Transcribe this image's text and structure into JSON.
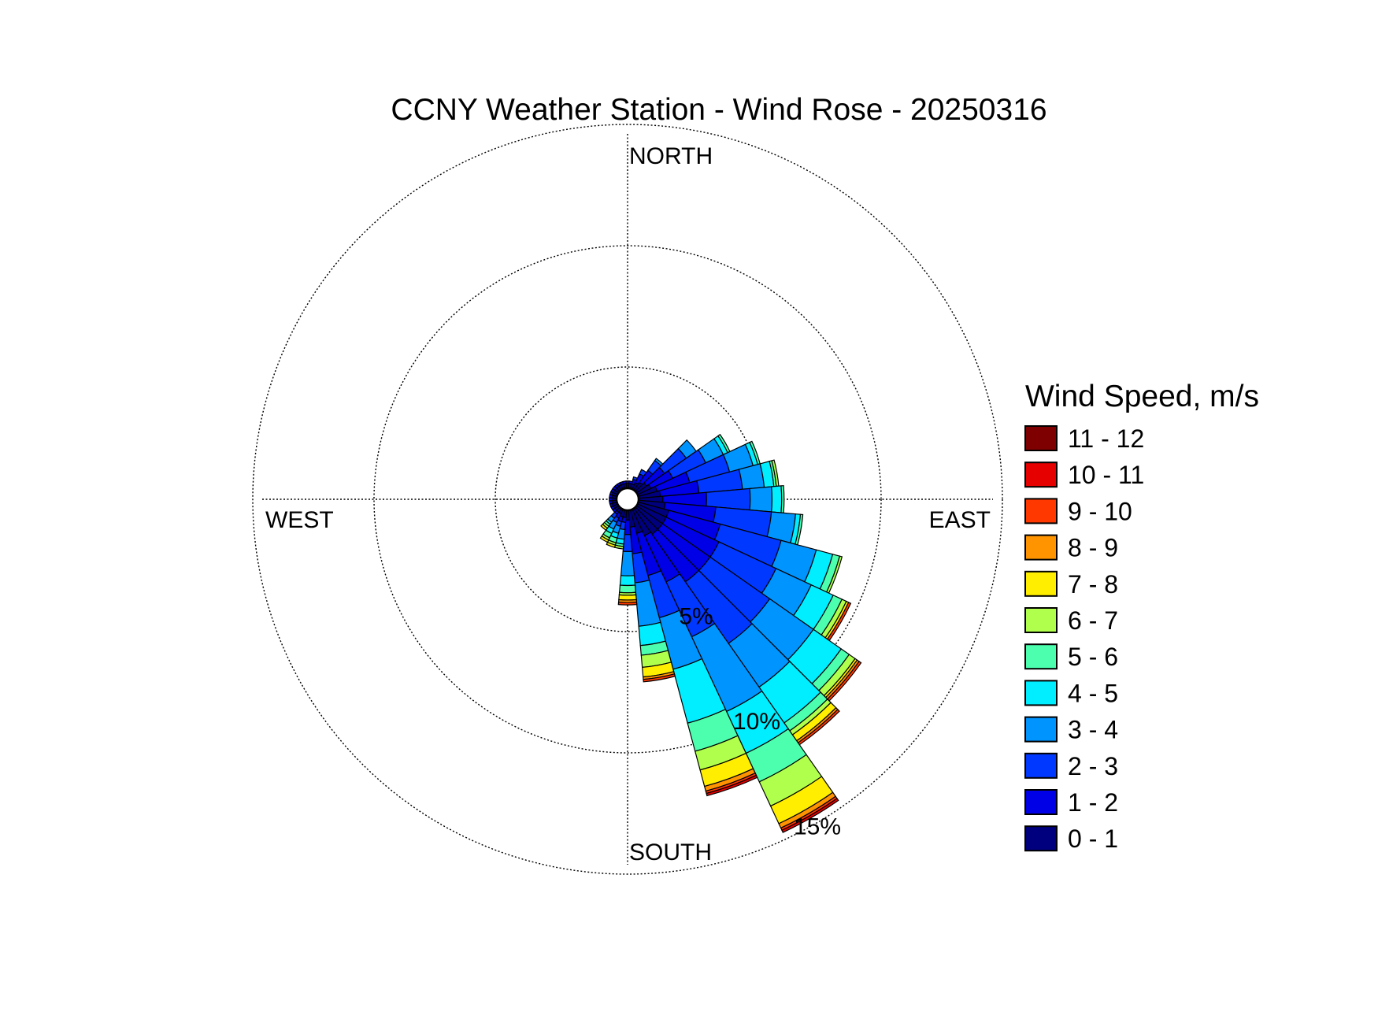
{
  "chart_data": {
    "type": "wind-rose",
    "title": "CCNY Weather Station - Wind Rose - 20250316",
    "directions": {
      "north": "NORTH",
      "east": "EAST",
      "south": "SOUTH",
      "west": "WEST"
    },
    "radial_unit": "percent",
    "radial_max": 15,
    "ring_labels": [
      {
        "value": 5,
        "text": "5%"
      },
      {
        "value": 10,
        "text": "10%"
      },
      {
        "value": 15,
        "text": "15%"
      }
    ],
    "grid": true,
    "legend": {
      "title": "Wind Speed, m/s",
      "position": "right",
      "bins": [
        {
          "label": "0 - 1",
          "color": "#00007f"
        },
        {
          "label": "1 - 2",
          "color": "#0000e6"
        },
        {
          "label": "2 - 3",
          "color": "#0038ff"
        },
        {
          "label": "3 - 4",
          "color": "#0094ff"
        },
        {
          "label": "4 - 5",
          "color": "#00eeff"
        },
        {
          "label": "5 - 6",
          "color": "#4cffae"
        },
        {
          "label": "6 - 7",
          "color": "#b0ff4c"
        },
        {
          "label": "7 - 8",
          "color": "#ffee00"
        },
        {
          "label": "8 - 9",
          "color": "#ff9400"
        },
        {
          "label": "9 - 10",
          "color": "#ff3800"
        },
        {
          "label": "10 - 11",
          "color": "#e60000"
        },
        {
          "label": "11 - 12",
          "color": "#7f0000"
        }
      ]
    },
    "sector_width_deg": 10,
    "series_note": "cumulative percent per speed bin, bins ordered 0-1 ... 11-12",
    "sectors": [
      {
        "direction": 0,
        "cum": [
          0.2,
          0.3,
          0.3,
          0.3,
          0.3,
          0.3,
          0.3,
          0.3,
          0.3,
          0.3,
          0.3,
          0.3
        ]
      },
      {
        "direction": 10,
        "cum": [
          0.2,
          0.3,
          0.3,
          0.3,
          0.3,
          0.3,
          0.3,
          0.3,
          0.3,
          0.3,
          0.3,
          0.3
        ]
      },
      {
        "direction": 20,
        "cum": [
          0.2,
          0.4,
          0.5,
          0.5,
          0.5,
          0.5,
          0.5,
          0.5,
          0.5,
          0.5,
          0.5,
          0.5
        ]
      },
      {
        "direction": 30,
        "cum": [
          0.3,
          0.7,
          0.9,
          0.9,
          0.9,
          0.9,
          0.9,
          0.9,
          0.9,
          0.9,
          0.9,
          0.9
        ]
      },
      {
        "direction": 40,
        "cum": [
          0.4,
          1.0,
          1.5,
          1.6,
          1.6,
          1.6,
          1.6,
          1.6,
          1.6,
          1.6,
          1.6,
          1.6
        ]
      },
      {
        "direction": 50,
        "cum": [
          0.5,
          1.4,
          2.5,
          3.0,
          3.0,
          3.0,
          3.0,
          3.0,
          3.0,
          3.0,
          3.0,
          3.0
        ]
      },
      {
        "direction": 60,
        "cum": [
          0.6,
          1.6,
          3.1,
          3.9,
          4.1,
          4.2,
          4.2,
          4.2,
          4.2,
          4.2,
          4.2,
          4.2
        ]
      },
      {
        "direction": 70,
        "cum": [
          0.8,
          2.2,
          3.9,
          4.9,
          5.1,
          5.2,
          5.2,
          5.2,
          5.2,
          5.2,
          5.2,
          5.2
        ]
      },
      {
        "direction": 80,
        "cum": [
          0.9,
          2.5,
          4.3,
          5.2,
          5.6,
          5.7,
          5.8,
          5.8,
          5.8,
          5.8,
          5.8,
          5.8
        ]
      },
      {
        "direction": 90,
        "cum": [
          1.0,
          2.8,
          4.6,
          5.5,
          5.9,
          6.0,
          6.0,
          6.0,
          6.0,
          6.0,
          6.0,
          6.0
        ]
      },
      {
        "direction": 100,
        "cum": [
          1.1,
          3.2,
          5.5,
          6.5,
          6.7,
          6.8,
          6.8,
          6.8,
          6.8,
          6.8,
          6.8,
          6.8
        ]
      },
      {
        "direction": 110,
        "cum": [
          1.3,
          3.5,
          6.1,
          7.6,
          8.3,
          8.6,
          8.7,
          8.7,
          8.7,
          8.7,
          8.7,
          8.7
        ]
      },
      {
        "direction": 120,
        "cum": [
          1.3,
          3.7,
          6.3,
          7.9,
          8.9,
          9.3,
          9.5,
          9.6,
          9.6,
          9.7,
          9.7,
          9.7
        ]
      },
      {
        "direction": 130,
        "cum": [
          1.3,
          3.7,
          6.7,
          8.9,
          10.3,
          10.7,
          11.0,
          11.1,
          11.2,
          11.3,
          11.3,
          11.3
        ]
      },
      {
        "direction": 140,
        "cum": [
          1.3,
          3.7,
          6.8,
          9.0,
          10.8,
          11.2,
          11.4,
          11.7,
          11.8,
          11.9,
          11.9,
          11.9
        ]
      },
      {
        "direction": 150,
        "cum": [
          1.2,
          3.3,
          5.8,
          9.2,
          11.1,
          12.4,
          13.5,
          14.3,
          14.5,
          14.6,
          14.7,
          14.7
        ]
      },
      {
        "direction": 160,
        "cum": [
          1.0,
          2.8,
          4.6,
          6.8,
          9.1,
          10.3,
          11.1,
          11.8,
          12.0,
          12.1,
          12.2,
          12.2
        ]
      },
      {
        "direction": 170,
        "cum": [
          0.7,
          1.8,
          3.0,
          4.8,
          5.6,
          6.0,
          6.5,
          6.9,
          7.0,
          7.1,
          7.1,
          7.1
        ]
      },
      {
        "direction": 180,
        "cum": [
          0.4,
          1.0,
          1.7,
          2.7,
          3.1,
          3.4,
          3.5,
          3.7,
          3.8,
          3.9,
          3.9,
          3.9
        ]
      },
      {
        "direction": 190,
        "cum": [
          0.3,
          0.5,
          0.8,
          1.2,
          1.4,
          1.5,
          1.6,
          1.6,
          1.6,
          1.6,
          1.6,
          1.6
        ]
      },
      {
        "direction": 200,
        "cum": [
          0.3,
          0.5,
          0.7,
          1.0,
          1.2,
          1.4,
          1.5,
          1.6,
          1.6,
          1.6,
          1.6,
          1.6
        ]
      },
      {
        "direction": 210,
        "cum": [
          0.2,
          0.4,
          0.6,
          0.9,
          1.1,
          1.3,
          1.4,
          1.5,
          1.5,
          1.5,
          1.5,
          1.5
        ]
      },
      {
        "direction": 220,
        "cum": [
          0.2,
          0.3,
          0.5,
          0.7,
          0.8,
          0.9,
          1.0,
          1.1,
          1.1,
          1.1,
          1.1,
          1.1
        ]
      },
      {
        "direction": 230,
        "cum": [
          0.2,
          0.3,
          0.3,
          0.3,
          0.3,
          0.3,
          0.3,
          0.3,
          0.3,
          0.3,
          0.3,
          0.3
        ]
      },
      {
        "direction": 240,
        "cum": [
          0.2,
          0.3,
          0.3,
          0.3,
          0.3,
          0.3,
          0.3,
          0.3,
          0.3,
          0.3,
          0.3,
          0.3
        ]
      },
      {
        "direction": 250,
        "cum": [
          0.2,
          0.3,
          0.3,
          0.3,
          0.3,
          0.3,
          0.3,
          0.3,
          0.3,
          0.3,
          0.3,
          0.3
        ]
      },
      {
        "direction": 260,
        "cum": [
          0.2,
          0.3,
          0.3,
          0.3,
          0.3,
          0.3,
          0.3,
          0.3,
          0.3,
          0.3,
          0.3,
          0.3
        ]
      },
      {
        "direction": 270,
        "cum": [
          0.2,
          0.3,
          0.3,
          0.3,
          0.3,
          0.3,
          0.3,
          0.3,
          0.3,
          0.3,
          0.3,
          0.3
        ]
      },
      {
        "direction": 280,
        "cum": [
          0.2,
          0.3,
          0.3,
          0.3,
          0.3,
          0.3,
          0.3,
          0.3,
          0.3,
          0.3,
          0.3,
          0.3
        ]
      },
      {
        "direction": 290,
        "cum": [
          0.2,
          0.3,
          0.3,
          0.3,
          0.3,
          0.3,
          0.3,
          0.3,
          0.3,
          0.3,
          0.3,
          0.3
        ]
      },
      {
        "direction": 300,
        "cum": [
          0.2,
          0.3,
          0.3,
          0.3,
          0.3,
          0.3,
          0.3,
          0.3,
          0.3,
          0.3,
          0.3,
          0.3
        ]
      },
      {
        "direction": 310,
        "cum": [
          0.2,
          0.3,
          0.3,
          0.3,
          0.3,
          0.3,
          0.3,
          0.3,
          0.3,
          0.3,
          0.3,
          0.3
        ]
      },
      {
        "direction": 320,
        "cum": [
          0.2,
          0.3,
          0.3,
          0.3,
          0.3,
          0.3,
          0.3,
          0.3,
          0.3,
          0.3,
          0.3,
          0.3
        ]
      },
      {
        "direction": 330,
        "cum": [
          0.2,
          0.3,
          0.3,
          0.3,
          0.3,
          0.3,
          0.3,
          0.3,
          0.3,
          0.3,
          0.3,
          0.3
        ]
      },
      {
        "direction": 340,
        "cum": [
          0.2,
          0.3,
          0.3,
          0.3,
          0.3,
          0.3,
          0.3,
          0.3,
          0.3,
          0.3,
          0.3,
          0.3
        ]
      },
      {
        "direction": 350,
        "cum": [
          0.2,
          0.3,
          0.3,
          0.3,
          0.3,
          0.3,
          0.3,
          0.3,
          0.3,
          0.3,
          0.3,
          0.3
        ]
      }
    ]
  }
}
